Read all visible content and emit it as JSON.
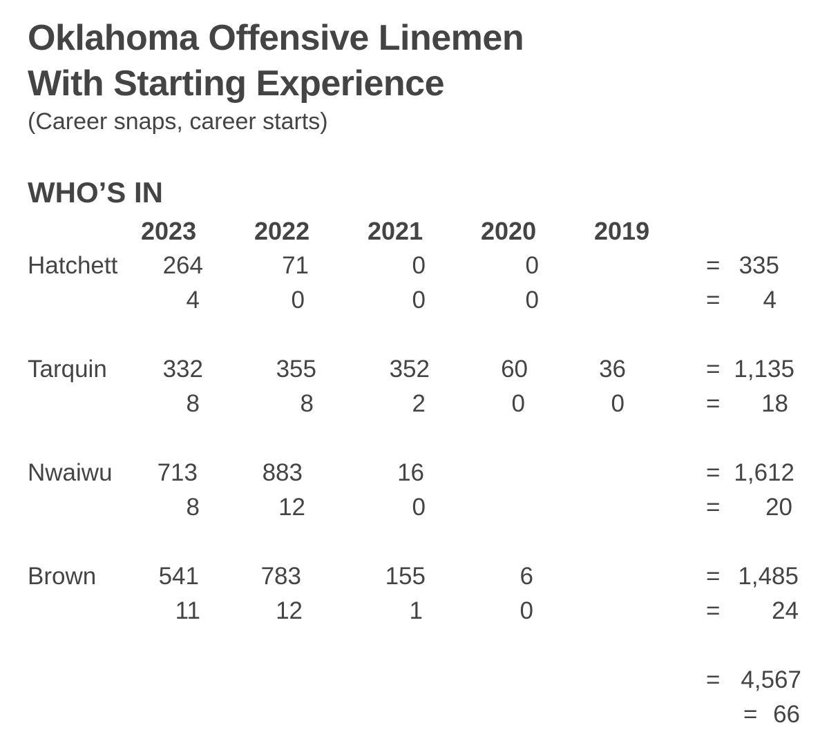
{
  "title": {
    "line1": "Oklahoma Offensive Linemen",
    "line2": "With Starting Experience"
  },
  "subtitle": "(Career snaps, career starts)",
  "section_label": "WHO’S IN",
  "years": [
    "2023",
    "2022",
    "2021",
    "2020",
    "2019"
  ],
  "players": [
    {
      "name": "Hatchett",
      "snaps": [
        "264",
        "71",
        "0",
        "0",
        ""
      ],
      "starts": [
        "4",
        "0",
        "0",
        "0",
        ""
      ],
      "total_snaps": "335",
      "total_starts": "4"
    },
    {
      "name": "Tarquin",
      "snaps": [
        "332",
        "355",
        "352",
        "60",
        "36"
      ],
      "starts": [
        "8",
        "8",
        "2",
        "0",
        "0"
      ],
      "total_snaps": "1,135",
      "total_starts": "18"
    },
    {
      "name": "Nwaiwu",
      "snaps": [
        "713",
        "883",
        "16",
        "",
        ""
      ],
      "starts": [
        "8",
        "12",
        "0",
        "",
        ""
      ],
      "total_snaps": "1,612",
      "total_starts": "20"
    },
    {
      "name": "Brown",
      "snaps": [
        "541",
        "783",
        "155",
        "6",
        ""
      ],
      "starts": [
        "11",
        "12",
        "1",
        "0",
        ""
      ],
      "total_snaps": "1,485",
      "total_starts": "24"
    }
  ],
  "equals_sign": "=",
  "grand_total_snaps": "4,567",
  "grand_total_starts": "66"
}
